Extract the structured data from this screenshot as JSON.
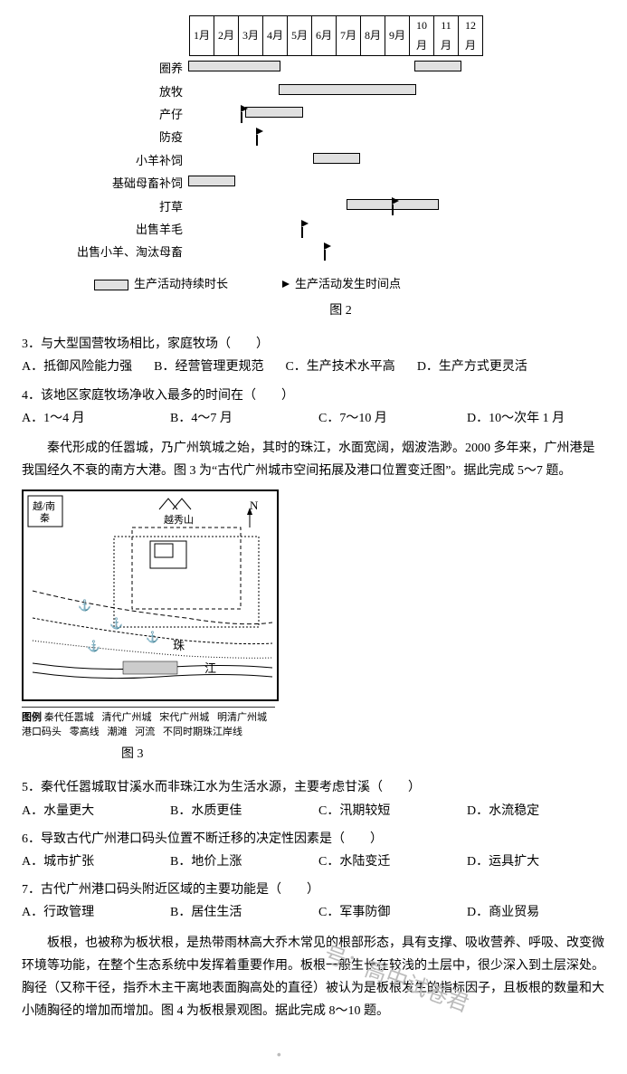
{
  "gantt": {
    "months": [
      "1月",
      "2月",
      "3月",
      "4月",
      "5月",
      "6月",
      "7月",
      "8月",
      "9月",
      "10月",
      "11月",
      "12月"
    ],
    "unit": 25,
    "rows": [
      {
        "label": "圈养",
        "bars": [
          {
            "start": 0,
            "end": 4
          },
          {
            "start": 10,
            "end": 12
          }
        ],
        "flags": []
      },
      {
        "label": "放牧",
        "bars": [
          {
            "start": 4,
            "end": 10
          }
        ],
        "flags": []
      },
      {
        "label": "产仔",
        "bars": [
          {
            "start": 2.5,
            "end": 5
          }
        ],
        "flags": [
          {
            "pos": 2.3
          }
        ]
      },
      {
        "label": "防疫",
        "bars": [],
        "flags": [
          {
            "pos": 3
          }
        ]
      },
      {
        "label": "小羊补饲",
        "bars": [
          {
            "start": 5.5,
            "end": 7.5
          }
        ],
        "flags": []
      },
      {
        "label": "基础母畜补饲",
        "bars": [
          {
            "start": 0,
            "end": 2
          }
        ],
        "flags": []
      },
      {
        "label": "打草",
        "bars": [
          {
            "start": 7,
            "end": 11
          }
        ],
        "flags": [
          {
            "pos": 9
          }
        ]
      },
      {
        "label": "出售羊毛",
        "bars": [],
        "flags": [
          {
            "pos": 5
          }
        ]
      },
      {
        "label": "出售小羊、淘汰母畜",
        "bars": [],
        "flags": [
          {
            "pos": 6
          }
        ]
      }
    ],
    "legend_bar": "生产活动持续时长",
    "legend_flag": "生产活动发生时间点",
    "caption": "图 2"
  },
  "q3": {
    "stem": "3．与大型国营牧场相比，家庭牧场（　　）",
    "opts": {
      "A": "A．抵御风险能力强",
      "B": "B．经营管理更规范",
      "C": "C．生产技术水平高",
      "D": "D．生产方式更灵活"
    }
  },
  "q4": {
    "stem": "4．该地区家庭牧场净收入最多的时间在（　　）",
    "opts": {
      "A": "A．1～4 月",
      "B": "B．4～7 月",
      "C": "C．7～10 月",
      "D": "D．10～次年 1 月"
    }
  },
  "passage1": "秦代形成的任嚣城，乃广州筑城之始，其时的珠江，水面宽阔，烟波浩渺。2000 多年来，广州港是我国经久不衰的南方大港。图 3 为“古代广州城市空间拓展及港口位置变迁图”。据此完成 5～7 题。",
  "map": {
    "north": "N",
    "rivers": {
      "label": "珠",
      "label2": "江"
    },
    "caption": "图 3",
    "legend_head": "图例",
    "legend_items": [
      "秦代任嚣城",
      "清代广州城",
      "宋代广州城",
      "明清广州城",
      "港口码头",
      "零高线",
      "潮滩",
      "河流",
      "不同时期珠江岸线"
    ]
  },
  "q5": {
    "stem": "5．秦代任嚣城取甘溪水而非珠江水为生活水源，主要考虑甘溪（　　）",
    "opts": {
      "A": "A．水量更大",
      "B": "B．水质更佳",
      "C": "C．汛期较短",
      "D": "D．水流稳定"
    }
  },
  "q6": {
    "stem": "6．导致古代广州港口码头位置不断迁移的决定性因素是（　　）",
    "opts": {
      "A": "A．城市扩张",
      "B": "B．地价上涨",
      "C": "C．水陆变迁",
      "D": "D．运具扩大"
    }
  },
  "q7": {
    "stem": "7．古代广州港口码头附近区域的主要功能是（　　）",
    "opts": {
      "A": "A．行政管理",
      "B": "B．居住生活",
      "C": "C．军事防御",
      "D": "D．商业贸易"
    }
  },
  "passage2": "板根，也被称为板状根，是热带雨林高大乔木常见的根部形态，具有支撑、吸收营养、呼吸、改变微环境等功能，在整个生态系统中发挥着重要作用。板根一般生长在较浅的土层中，很少深入到土层深处。胸径（又称干径，指乔木主干离地表面胸高处的直径）被认为是板根发生的指标因子，且板根的数量和大小随胸径的增加而增加。图 4 为板根景观图。据此完成 8～10 题。",
  "watermark1": "号：高中试卷君",
  "watermark2": "．"
}
